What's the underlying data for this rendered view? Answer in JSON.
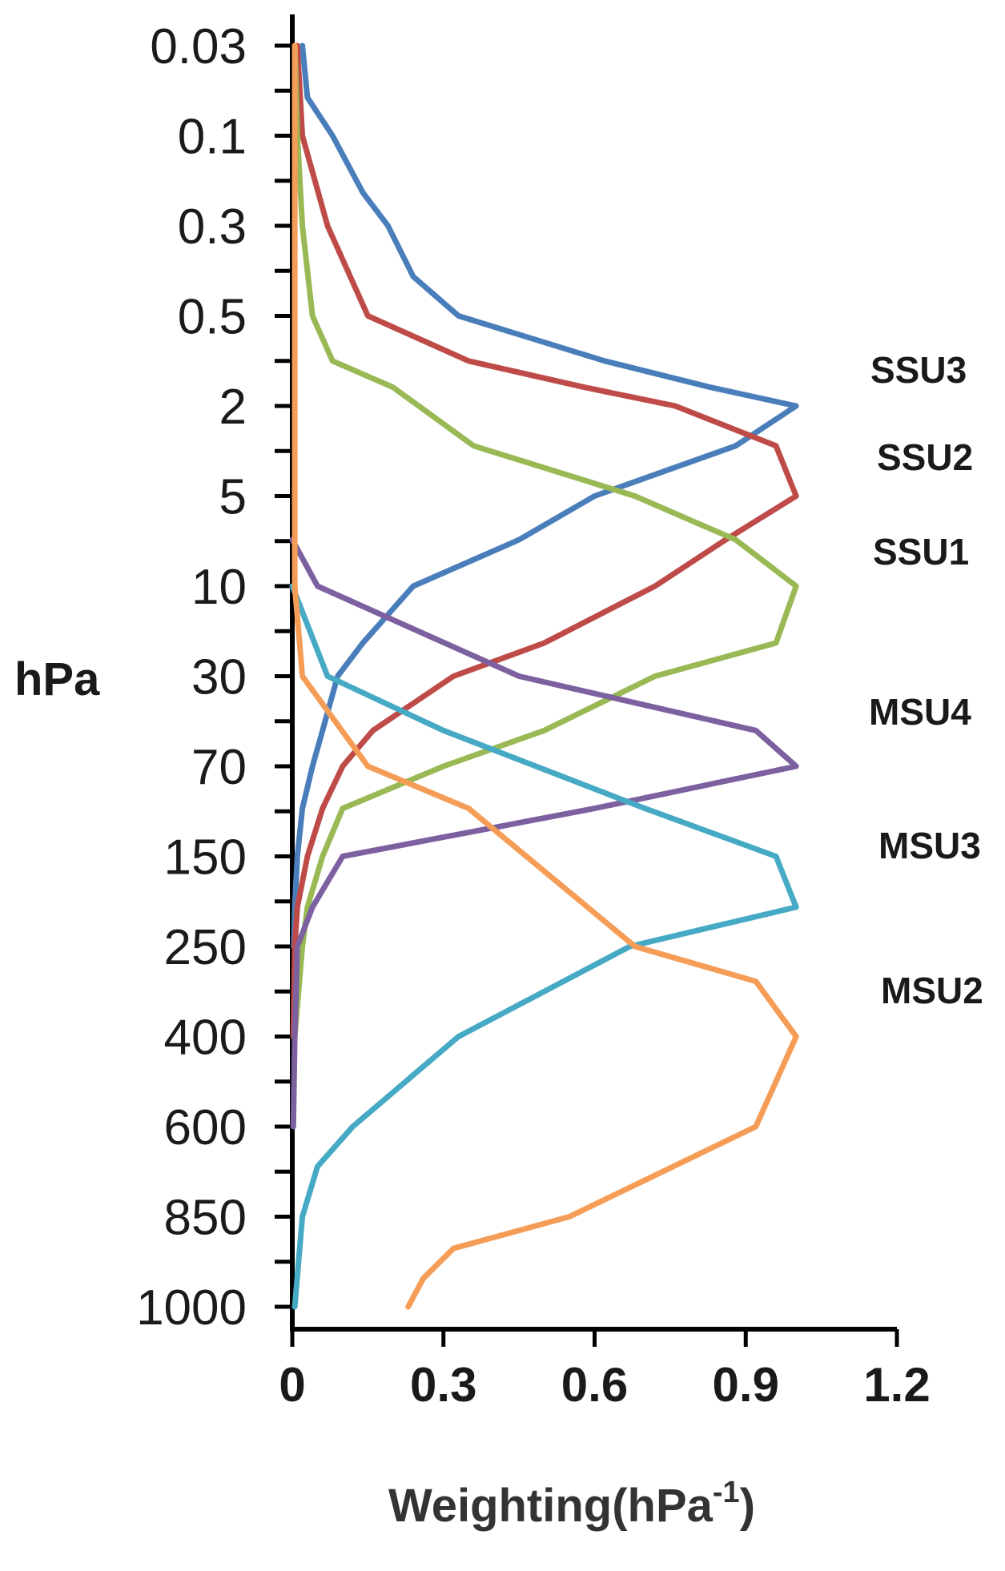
{
  "chart_data": {
    "type": "line",
    "xlabel": "Weighting(hPa",
    "xlabel_sup": "-1",
    "xlabel_end": ")",
    "ylabel": "hPa",
    "xlim": [
      0,
      1.2
    ],
    "x_ticks": [
      "0",
      "0.3",
      "0.6",
      "0.9",
      "1.2"
    ],
    "y_ticks": [
      "0.03",
      "0.1",
      "0.3",
      "0.5",
      "2",
      "5",
      "10",
      "30",
      "70",
      "150",
      "250",
      "400",
      "600",
      "850",
      "1000"
    ],
    "grid": false,
    "series": [
      {
        "name": "SSU3",
        "color": "#4a7ebb",
        "points": [
          [
            0.02,
            0.03
          ],
          [
            0.03,
            0.06
          ],
          [
            0.08,
            0.1
          ],
          [
            0.14,
            0.2
          ],
          [
            0.19,
            0.3
          ],
          [
            0.24,
            0.4
          ],
          [
            0.33,
            0.5
          ],
          [
            0.62,
            1
          ],
          [
            0.83,
            1.5
          ],
          [
            1.0,
            2
          ],
          [
            0.88,
            3
          ],
          [
            0.6,
            5
          ],
          [
            0.45,
            7
          ],
          [
            0.24,
            10
          ],
          [
            0.14,
            20
          ],
          [
            0.09,
            30
          ],
          [
            0.06,
            50
          ],
          [
            0.04,
            70
          ],
          [
            0.02,
            100
          ],
          [
            0.01,
            150
          ],
          [
            0.005,
            200
          ],
          [
            0.003,
            250
          ]
        ]
      },
      {
        "name": "SSU2",
        "color": "#be4b48",
        "points": [
          [
            0.01,
            0.03
          ],
          [
            0.02,
            0.1
          ],
          [
            0.07,
            0.3
          ],
          [
            0.15,
            0.5
          ],
          [
            0.35,
            1
          ],
          [
            0.58,
            1.5
          ],
          [
            0.76,
            2
          ],
          [
            0.96,
            3
          ],
          [
            1.0,
            5
          ],
          [
            0.86,
            7
          ],
          [
            0.72,
            10
          ],
          [
            0.5,
            20
          ],
          [
            0.32,
            30
          ],
          [
            0.16,
            50
          ],
          [
            0.1,
            70
          ],
          [
            0.06,
            100
          ],
          [
            0.03,
            150
          ],
          [
            0.01,
            200
          ],
          [
            0.005,
            250
          ],
          [
            0.002,
            400
          ]
        ]
      },
      {
        "name": "SSU1",
        "color": "#98b954",
        "points": [
          [
            0.005,
            0.03
          ],
          [
            0.01,
            0.1
          ],
          [
            0.02,
            0.3
          ],
          [
            0.04,
            0.5
          ],
          [
            0.08,
            1
          ],
          [
            0.2,
            1.5
          ],
          [
            0.36,
            3
          ],
          [
            0.68,
            5
          ],
          [
            0.88,
            7
          ],
          [
            1.0,
            10
          ],
          [
            0.96,
            20
          ],
          [
            0.72,
            30
          ],
          [
            0.5,
            50
          ],
          [
            0.3,
            70
          ],
          [
            0.1,
            100
          ],
          [
            0.06,
            150
          ],
          [
            0.03,
            200
          ],
          [
            0.02,
            250
          ],
          [
            0.005,
            400
          ]
        ]
      },
      {
        "name": "MSU4",
        "color": "#7d60a0",
        "points": [
          [
            0.0,
            7
          ],
          [
            0.05,
            10
          ],
          [
            0.45,
            30
          ],
          [
            0.92,
            50
          ],
          [
            1.0,
            70
          ],
          [
            0.6,
            100
          ],
          [
            0.1,
            150
          ],
          [
            0.04,
            200
          ],
          [
            0.01,
            250
          ],
          [
            0.005,
            400
          ],
          [
            0.002,
            600
          ]
        ]
      },
      {
        "name": "MSU3",
        "color": "#46aac5",
        "points": [
          [
            0.0,
            10
          ],
          [
            0.07,
            30
          ],
          [
            0.3,
            50
          ],
          [
            0.7,
            100
          ],
          [
            0.96,
            150
          ],
          [
            1.0,
            200
          ],
          [
            0.67,
            250
          ],
          [
            0.33,
            400
          ],
          [
            0.12,
            600
          ],
          [
            0.05,
            700
          ],
          [
            0.02,
            850
          ],
          [
            0.005,
            1000
          ]
        ]
      },
      {
        "name": "MSU2",
        "color": "#f59d56",
        "points": [
          [
            0.005,
            0.03
          ],
          [
            0.005,
            1
          ],
          [
            0.005,
            10
          ],
          [
            0.02,
            30
          ],
          [
            0.15,
            70
          ],
          [
            0.35,
            100
          ],
          [
            0.68,
            250
          ],
          [
            0.92,
            300
          ],
          [
            1.0,
            400
          ],
          [
            0.92,
            600
          ],
          [
            0.55,
            850
          ],
          [
            0.32,
            900
          ],
          [
            0.26,
            950
          ],
          [
            0.23,
            1000
          ]
        ]
      }
    ]
  }
}
